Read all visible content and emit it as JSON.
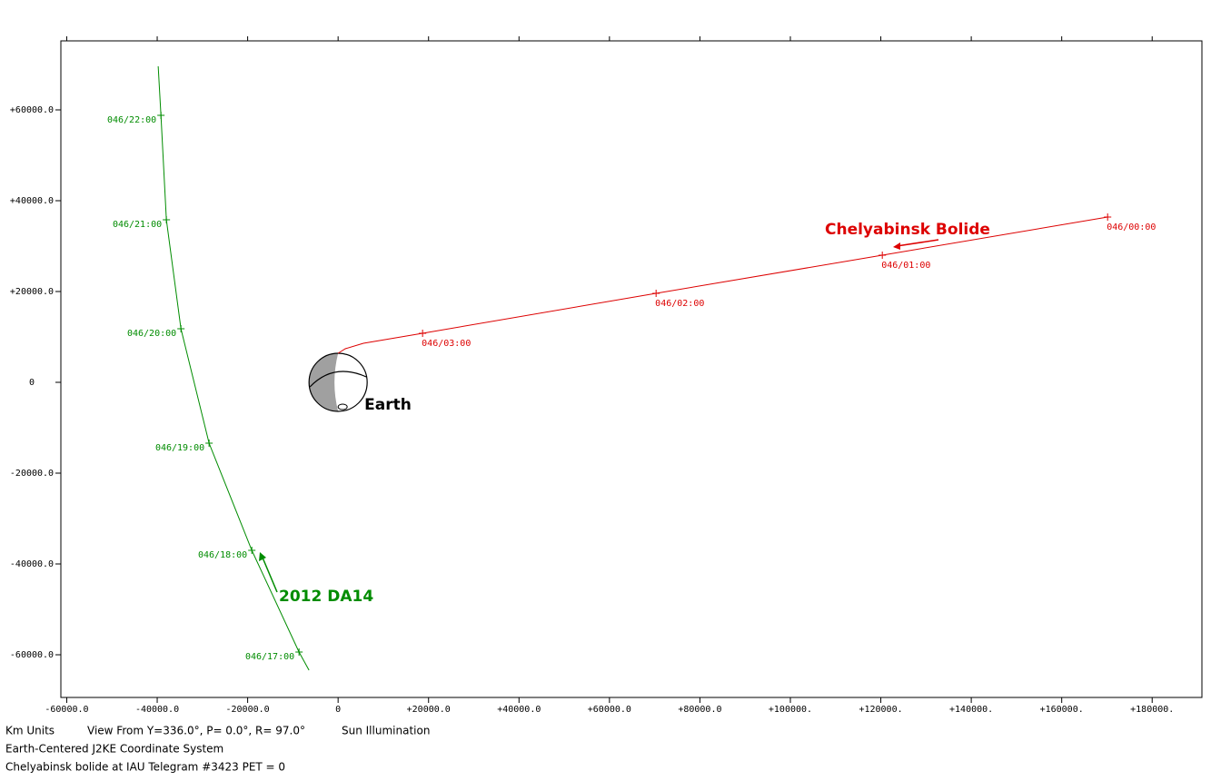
{
  "chart_data": {
    "type": "line",
    "xlim": [
      -61300,
      191000
    ],
    "ylim": [
      -69400,
      75200
    ],
    "xticks": [
      {
        "value": -60000,
        "label": "-60000.0"
      },
      {
        "value": -40000,
        "label": "-40000.0"
      },
      {
        "value": -20000,
        "label": "-20000.0"
      },
      0,
      {
        "value": 20000,
        "label": "+20000.0"
      },
      {
        "value": 40000,
        "label": "+40000.0"
      },
      {
        "value": 60000,
        "label": "+60000.0"
      },
      {
        "value": 80000,
        "label": "+80000.0"
      },
      {
        "value": 100000,
        "label": "+100000."
      },
      {
        "value": 120000,
        "label": "+120000."
      },
      {
        "value": 140000,
        "label": "+140000."
      },
      {
        "value": 160000,
        "label": "+160000."
      },
      {
        "value": 180000,
        "label": "+180000."
      }
    ],
    "yticks": [
      {
        "value": 60000,
        "label": "+60000.0"
      },
      {
        "value": 40000,
        "label": "+40000.0"
      },
      {
        "value": 20000,
        "label": "+20000.0"
      },
      0,
      {
        "value": -20000,
        "label": "-20000.0"
      },
      {
        "value": -40000,
        "label": "-40000.0"
      },
      {
        "value": -60000,
        "label": "-60000.0"
      }
    ],
    "series": [
      {
        "name": "2012 DA14",
        "color": "#008c00",
        "x": [
          -39780,
          -39170,
          -37970,
          -34750,
          -28530,
          -19080,
          -8640,
          -6430
        ],
        "values": [
          69600,
          58800,
          35800,
          11800,
          -13400,
          -37000,
          -59400,
          -63400
        ],
        "markers": [
          {
            "x": -39170,
            "y": 58800,
            "label": "046/22:00"
          },
          {
            "x": -37970,
            "y": 35800,
            "label": "046/21:00"
          },
          {
            "x": -34750,
            "y": 11800,
            "label": "046/20:00"
          },
          {
            "x": -28530,
            "y": -13400,
            "label": "046/19:00"
          },
          {
            "x": -19080,
            "y": -37000,
            "label": "046/18:00"
          },
          {
            "x": -8640,
            "y": -59400,
            "label": "046/17:00"
          }
        ]
      },
      {
        "name": "Chelyabinsk Bolide",
        "color": "#dd0000",
        "x": [
          0,
          1600,
          5600,
          18680,
          70310,
          120330,
          170150
        ],
        "values": [
          6400,
          7400,
          8600,
          10800,
          19600,
          28000,
          36400
        ],
        "markers": [
          {
            "x": 170150,
            "y": 36400,
            "label": "046/00:00"
          },
          {
            "x": 120330,
            "y": 28000,
            "label": "046/01:00"
          },
          {
            "x": 70310,
            "y": 19600,
            "label": "046/02:00"
          },
          {
            "x": 18680,
            "y": 10800,
            "label": "046/03:00"
          }
        ]
      }
    ],
    "earth": {
      "label": "Earth",
      "radius": 6400
    },
    "footer": [
      "Km Units",
      "View From Y=336.0°, P=  0.0°, R= 97.0°",
      "Sun Illumination",
      "Earth-Centered J2KE Coordinate System",
      "Chelyabinsk bolide at IAU Telegram #3423 PET = 0"
    ]
  }
}
